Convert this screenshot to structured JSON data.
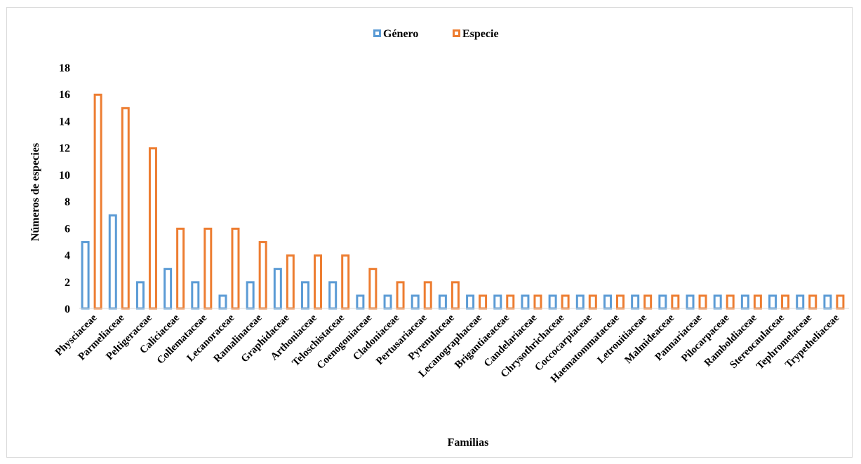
{
  "chart_data": {
    "type": "bar",
    "title": "",
    "xlabel": "Familias",
    "ylabel": "Números de especies",
    "ylim": [
      0,
      18
    ],
    "yticks": [
      0,
      2,
      4,
      6,
      8,
      10,
      12,
      14,
      16,
      18
    ],
    "grid": false,
    "legend_position": "top-center",
    "categories": [
      "Physciaceae",
      "Parmeliaceae",
      "Peltigeraceae",
      "Caliciaceae",
      "Collemataceae",
      "Lecanoraceae",
      "Ramalinaceae",
      "Graphidaceae",
      "Arthoniaceae",
      "Teloschistaceae",
      "Coenogoniaceae",
      "Cladoniaceae",
      "Pertusariaceae",
      "Pyrenulaceae",
      "Lecanographaceae",
      "Brigantiaeaceae",
      "Candelariaceae",
      "Chrysothrichaceae",
      "Coccocarpiaceae",
      "Haematommataceae",
      "Letrouitiaceae",
      "Malmideaceae",
      "Pannariaceae",
      "Pilocarpaceae",
      "Ramboldiaceae",
      "Stereocaulaceae",
      "Tephromelaceae",
      "Trypetheliaceae"
    ],
    "series": [
      {
        "name": "Género",
        "color": "#5b9bd5",
        "values": [
          5,
          7,
          2,
          3,
          2,
          1,
          2,
          3,
          2,
          2,
          1,
          1,
          1,
          1,
          1,
          1,
          1,
          1,
          1,
          1,
          1,
          1,
          1,
          1,
          1,
          1,
          1,
          1
        ]
      },
      {
        "name": "Especie",
        "color": "#ed7d31",
        "values": [
          16,
          15,
          12,
          6,
          6,
          6,
          5,
          4,
          4,
          4,
          3,
          2,
          2,
          2,
          1,
          1,
          1,
          1,
          1,
          1,
          1,
          1,
          1,
          1,
          1,
          1,
          1,
          1
        ]
      }
    ]
  }
}
